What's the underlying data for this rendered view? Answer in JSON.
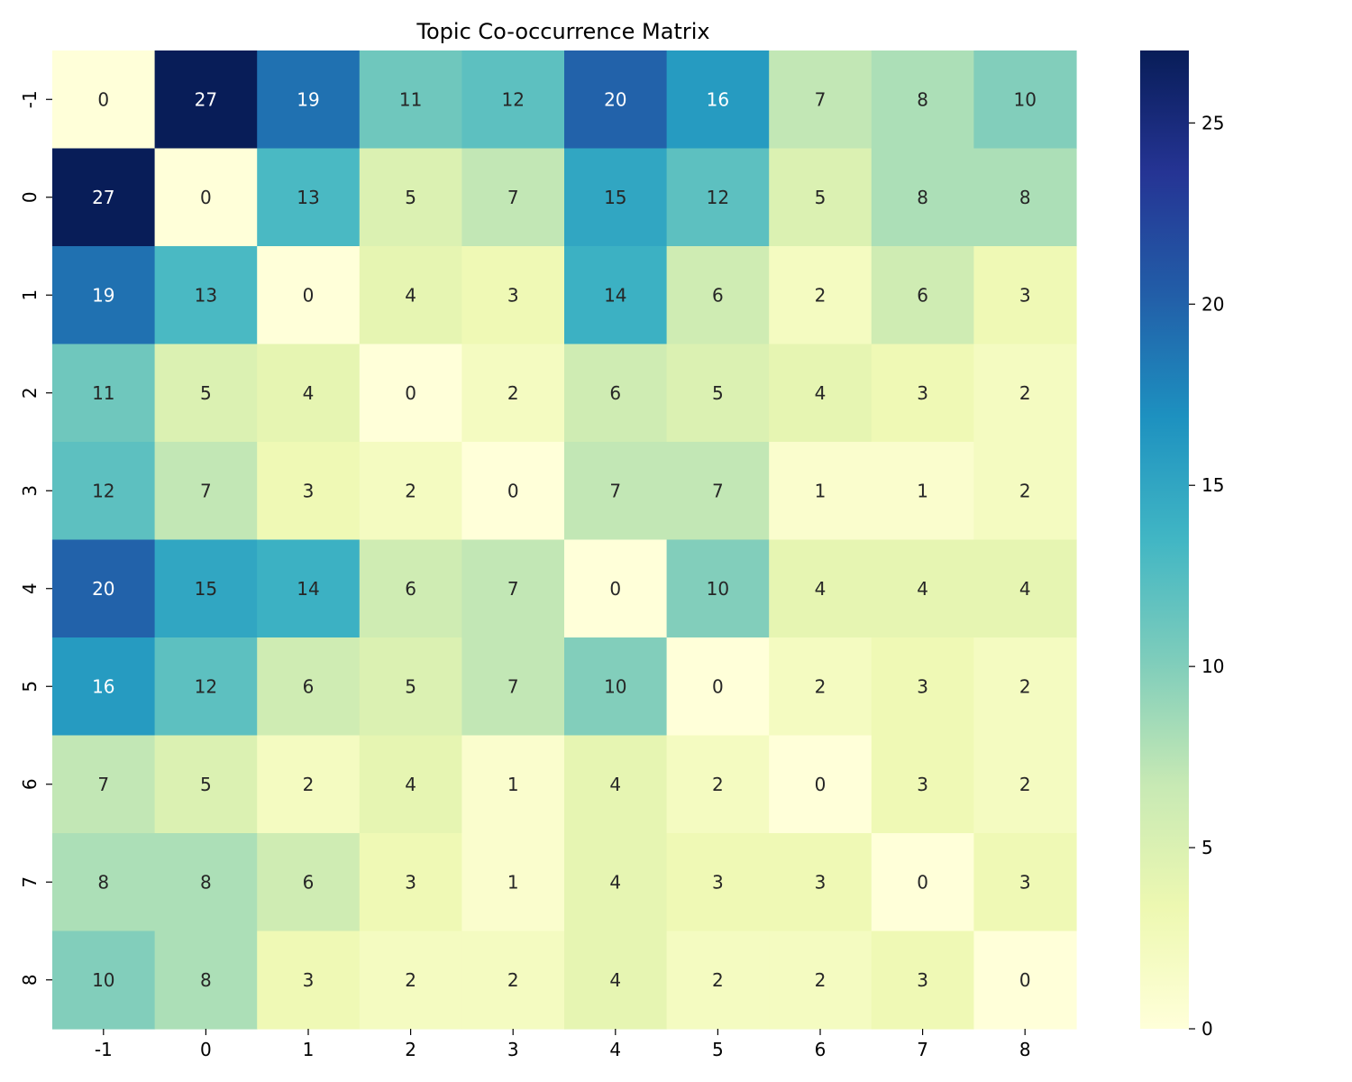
{
  "chart_data": {
    "type": "heatmap",
    "title": "Topic Co-occurrence Matrix",
    "xlabel": "",
    "ylabel": "",
    "x_categories": [
      "-1",
      "0",
      "1",
      "2",
      "3",
      "4",
      "5",
      "6",
      "7",
      "8"
    ],
    "y_categories": [
      "-1",
      "0",
      "1",
      "2",
      "3",
      "4",
      "5",
      "6",
      "7",
      "8"
    ],
    "values": [
      [
        0,
        27,
        19,
        11,
        12,
        20,
        16,
        7,
        8,
        10
      ],
      [
        27,
        0,
        13,
        5,
        7,
        15,
        12,
        5,
        8,
        8
      ],
      [
        19,
        13,
        0,
        4,
        3,
        14,
        6,
        2,
        6,
        3
      ],
      [
        11,
        5,
        4,
        0,
        2,
        6,
        5,
        4,
        3,
        2
      ],
      [
        12,
        7,
        3,
        2,
        0,
        7,
        7,
        1,
        1,
        2
      ],
      [
        20,
        15,
        14,
        6,
        7,
        0,
        10,
        4,
        4,
        4
      ],
      [
        16,
        12,
        6,
        5,
        7,
        10,
        0,
        2,
        3,
        2
      ],
      [
        7,
        5,
        2,
        4,
        1,
        4,
        2,
        0,
        3,
        2
      ],
      [
        8,
        8,
        6,
        3,
        1,
        4,
        3,
        3,
        0,
        3
      ],
      [
        10,
        8,
        3,
        2,
        2,
        4,
        2,
        2,
        3,
        0
      ]
    ],
    "colormap": "YlGnBu",
    "colormap_stops": [
      "#ffffd9",
      "#edf8b1",
      "#c7e9b4",
      "#7fcdbb",
      "#41b6c4",
      "#1d91c0",
      "#225ea8",
      "#253494",
      "#081d58"
    ],
    "vmin": 0,
    "vmax": 27,
    "colorbar": {
      "ticks": [
        0,
        5,
        10,
        15,
        20,
        25
      ],
      "tick_labels": [
        "0",
        "5",
        "10",
        "15",
        "20",
        "25"
      ]
    },
    "annotated": true
  }
}
